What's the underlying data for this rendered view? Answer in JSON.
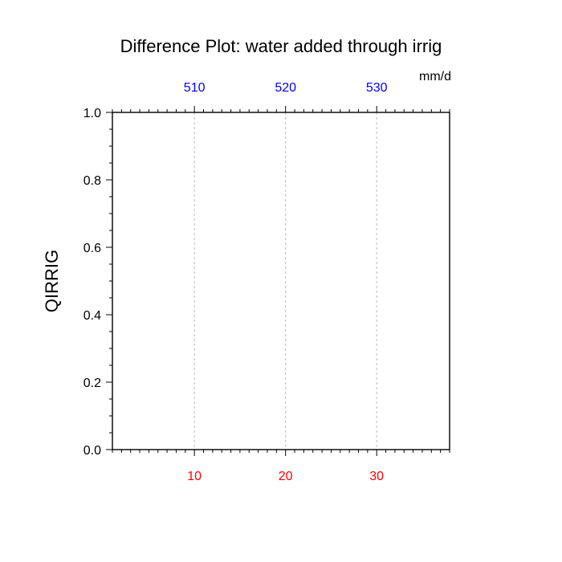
{
  "chart_data": {
    "type": "line",
    "title": "Difference Plot: water added through irrig",
    "units": "mm/d",
    "ylabel": "QIRRIG",
    "xlim": [
      1,
      38
    ],
    "ylim": [
      0,
      1
    ],
    "y_ticks": [
      0.0,
      0.2,
      0.4,
      0.6,
      0.8,
      1.0
    ],
    "y_tick_labels": [
      "0.0",
      "0.2",
      "0.4",
      "0.6",
      "0.8",
      "1.0"
    ],
    "x_ticks": [
      10,
      20,
      30
    ],
    "x_tick_labels": [
      "10",
      "20",
      "30"
    ],
    "x_tick_color": "#ff0000",
    "top_ticks": [
      10,
      20,
      30
    ],
    "top_tick_labels": [
      "510",
      "520",
      "530"
    ],
    "top_tick_color": "#0000ff",
    "grid": "vertical dashed at major x ticks",
    "series": []
  }
}
